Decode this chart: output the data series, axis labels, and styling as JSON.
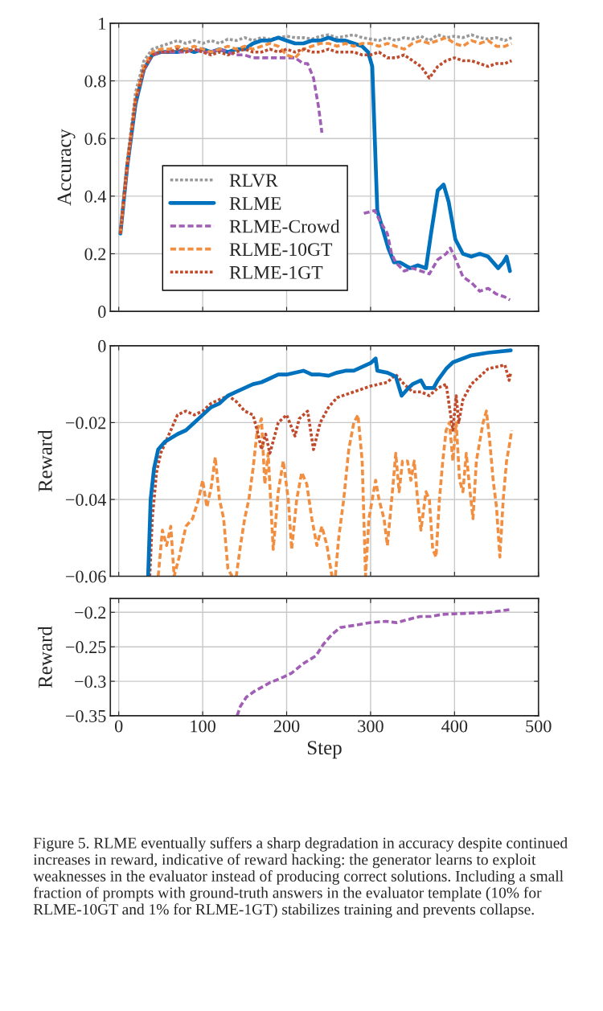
{
  "chart_data": [
    {
      "type": "line",
      "ylabel": "Accuracy",
      "xlim": [
        -10,
        500
      ],
      "xticks": [
        0,
        100,
        200,
        300,
        400,
        500
      ],
      "ylim": [
        0,
        1
      ],
      "yticks": [
        0,
        0.2,
        0.4,
        0.6,
        0.8,
        1
      ],
      "grid": true,
      "legend": "bottom left",
      "tick_labels": "y",
      "series": [
        {
          "name": "RLVR",
          "color": "#999999",
          "line_style": "dotted",
          "x": [
            2,
            10,
            20,
            30,
            40,
            50,
            60,
            70,
            80,
            90,
            100,
            110,
            120,
            130,
            140,
            150,
            160,
            170,
            180,
            190,
            200,
            210,
            220,
            230,
            240,
            250,
            260,
            270,
            280,
            290,
            300,
            310,
            320,
            330,
            340,
            350,
            360,
            370,
            380,
            390,
            400,
            410,
            420,
            430,
            440,
            450,
            460,
            468
          ],
          "values": [
            0.27,
            0.52,
            0.76,
            0.87,
            0.91,
            0.92,
            0.93,
            0.94,
            0.93,
            0.94,
            0.93,
            0.94,
            0.93,
            0.945,
            0.94,
            0.95,
            0.94,
            0.95,
            0.945,
            0.95,
            0.955,
            0.95,
            0.95,
            0.945,
            0.955,
            0.96,
            0.95,
            0.955,
            0.96,
            0.95,
            0.945,
            0.94,
            0.95,
            0.94,
            0.95,
            0.945,
            0.955,
            0.94,
            0.96,
            0.95,
            0.955,
            0.95,
            0.96,
            0.95,
            0.945,
            0.95,
            0.94,
            0.95
          ]
        },
        {
          "name": "RLME",
          "color": "#0072bd",
          "line_style": "solid",
          "x": [
            2,
            10,
            20,
            30,
            40,
            50,
            60,
            70,
            80,
            90,
            100,
            110,
            120,
            130,
            140,
            150,
            160,
            170,
            180,
            190,
            200,
            210,
            220,
            230,
            240,
            250,
            260,
            270,
            280,
            290,
            297,
            302,
            308,
            315,
            321,
            328,
            335,
            347,
            356,
            366,
            372,
            380,
            387,
            393,
            401,
            410,
            420,
            430,
            440,
            452,
            458,
            462,
            466
          ],
          "values": [
            0.27,
            0.5,
            0.72,
            0.84,
            0.89,
            0.9,
            0.9,
            0.9,
            0.91,
            0.9,
            0.91,
            0.9,
            0.91,
            0.9,
            0.91,
            0.91,
            0.93,
            0.94,
            0.94,
            0.95,
            0.94,
            0.93,
            0.93,
            0.94,
            0.94,
            0.95,
            0.94,
            0.94,
            0.93,
            0.92,
            0.9,
            0.85,
            0.35,
            0.28,
            0.22,
            0.17,
            0.17,
            0.15,
            0.16,
            0.15,
            0.27,
            0.42,
            0.44,
            0.38,
            0.25,
            0.2,
            0.19,
            0.2,
            0.19,
            0.15,
            0.17,
            0.19,
            0.14
          ]
        },
        {
          "name": "RLME-Crowd",
          "color": "#a05eb5",
          "line_style": "dashed",
          "x": [
            2,
            10,
            20,
            30,
            40,
            50,
            60,
            70,
            80,
            90,
            100,
            110,
            120,
            130,
            140,
            150,
            160,
            170,
            180,
            190,
            200,
            210,
            220,
            225,
            232,
            238,
            242,
            246,
            292,
            305,
            310,
            320,
            325,
            330,
            340,
            350,
            360,
            370,
            380,
            390,
            395,
            400,
            410,
            420,
            430,
            440,
            450,
            460,
            466
          ],
          "values": [
            0.27,
            0.5,
            0.73,
            0.84,
            0.89,
            0.9,
            0.9,
            0.9,
            0.9,
            0.91,
            0.9,
            0.9,
            0.91,
            0.9,
            0.89,
            0.89,
            0.88,
            0.88,
            0.88,
            0.88,
            0.88,
            0.88,
            0.86,
            0.86,
            0.81,
            0.71,
            0.62,
            null,
            0.34,
            0.35,
            0.32,
            0.27,
            0.2,
            0.17,
            0.14,
            0.15,
            0.14,
            0.13,
            0.18,
            0.2,
            0.22,
            0.19,
            0.12,
            0.1,
            0.07,
            0.08,
            0.06,
            0.05,
            0.04
          ]
        },
        {
          "name": "RLME-10GT",
          "color": "#f28e40",
          "line_style": "dashed",
          "x": [
            2,
            10,
            20,
            30,
            40,
            50,
            60,
            70,
            80,
            90,
            100,
            110,
            120,
            130,
            140,
            150,
            160,
            170,
            180,
            190,
            200,
            210,
            220,
            230,
            240,
            250,
            260,
            270,
            280,
            290,
            300,
            310,
            320,
            330,
            340,
            350,
            360,
            370,
            380,
            390,
            400,
            410,
            420,
            430,
            440,
            450,
            460,
            468
          ],
          "values": [
            0.27,
            0.51,
            0.74,
            0.85,
            0.9,
            0.91,
            0.91,
            0.92,
            0.91,
            0.92,
            0.91,
            0.9,
            0.91,
            0.92,
            0.91,
            0.92,
            0.91,
            0.92,
            0.93,
            0.92,
            0.89,
            0.88,
            0.91,
            0.92,
            0.93,
            0.93,
            0.92,
            0.93,
            0.92,
            0.93,
            0.93,
            0.92,
            0.93,
            0.92,
            0.91,
            0.93,
            0.94,
            0.93,
            0.94,
            0.95,
            0.93,
            0.92,
            0.94,
            0.93,
            0.94,
            0.92,
            0.92,
            0.93
          ]
        },
        {
          "name": "RLME-1GT",
          "color": "#bf4a2c",
          "line_style": "dotted",
          "x": [
            2,
            10,
            20,
            30,
            40,
            50,
            60,
            70,
            80,
            90,
            100,
            110,
            120,
            130,
            140,
            150,
            160,
            170,
            180,
            190,
            200,
            210,
            220,
            230,
            240,
            250,
            260,
            270,
            280,
            290,
            300,
            310,
            320,
            330,
            340,
            350,
            360,
            370,
            380,
            390,
            400,
            410,
            420,
            430,
            440,
            450,
            460,
            468
          ],
          "values": [
            0.27,
            0.5,
            0.73,
            0.84,
            0.89,
            0.9,
            0.9,
            0.91,
            0.9,
            0.91,
            0.9,
            0.89,
            0.9,
            0.89,
            0.9,
            0.91,
            0.9,
            0.9,
            0.91,
            0.9,
            0.91,
            0.9,
            0.91,
            0.9,
            0.9,
            0.91,
            0.9,
            0.9,
            0.9,
            0.89,
            0.89,
            0.9,
            0.88,
            0.88,
            0.89,
            0.87,
            0.85,
            0.81,
            0.85,
            0.87,
            0.88,
            0.87,
            0.87,
            0.86,
            0.85,
            0.86,
            0.86,
            0.87
          ]
        }
      ]
    },
    {
      "type": "line",
      "ylabel": "Reward",
      "xlim": [
        -10,
        500
      ],
      "xticks": [
        0,
        100,
        200,
        300,
        400,
        500
      ],
      "ylim": [
        -0.06,
        0
      ],
      "yticks": [
        {
          "value": -0.06,
          "label": "−0.06"
        },
        {
          "value": -0.04,
          "label": "−0.04"
        },
        {
          "value": -0.02,
          "label": "−0.02"
        },
        0
      ],
      "grid": true,
      "tick_labels": "y",
      "series": [
        {
          "color": "#f28e40",
          "line_style": "dashed",
          "x": [
            47,
            52,
            57,
            62,
            66,
            72,
            80,
            88,
            95,
            100,
            105,
            110,
            115,
            120,
            125,
            130,
            135,
            140,
            145,
            150,
            155,
            160,
            165,
            170,
            174,
            178,
            184,
            190,
            196,
            202,
            206,
            212,
            218,
            224,
            230,
            236,
            242,
            248,
            254,
            258,
            262,
            268,
            274,
            280,
            285,
            290,
            294,
            298,
            302,
            306,
            310,
            316,
            320,
            326,
            330,
            334,
            338,
            344,
            348,
            352,
            356,
            360,
            366,
            370,
            374,
            378,
            382,
            386,
            390,
            394,
            398,
            402,
            406,
            410,
            414,
            418,
            422,
            426,
            430,
            434,
            438,
            442,
            446,
            450,
            454,
            458,
            462,
            466,
            468
          ],
          "values": [
            -0.06,
            -0.048,
            -0.052,
            -0.047,
            -0.06,
            -0.055,
            -0.047,
            -0.045,
            -0.04,
            -0.035,
            -0.042,
            -0.037,
            -0.029,
            -0.04,
            -0.045,
            -0.058,
            -0.06,
            -0.06,
            -0.052,
            -0.045,
            -0.04,
            -0.032,
            -0.022,
            -0.019,
            -0.036,
            -0.028,
            -0.053,
            -0.038,
            -0.03,
            -0.04,
            -0.053,
            -0.04,
            -0.033,
            -0.036,
            -0.045,
            -0.052,
            -0.047,
            -0.052,
            -0.06,
            -0.06,
            -0.05,
            -0.04,
            -0.027,
            -0.02,
            -0.018,
            -0.03,
            -0.06,
            -0.045,
            -0.04,
            -0.035,
            -0.04,
            -0.045,
            -0.052,
            -0.038,
            -0.028,
            -0.038,
            -0.03,
            -0.03,
            -0.035,
            -0.03,
            -0.04,
            -0.048,
            -0.038,
            -0.04,
            -0.053,
            -0.055,
            -0.04,
            -0.03,
            -0.022,
            -0.02,
            -0.03,
            -0.02,
            -0.035,
            -0.038,
            -0.028,
            -0.037,
            -0.045,
            -0.03,
            -0.025,
            -0.02,
            -0.017,
            -0.025,
            -0.035,
            -0.042,
            -0.055,
            -0.04,
            -0.03,
            -0.025,
            -0.022
          ]
        },
        {
          "color": "#bf4a2c",
          "line_style": "dotted",
          "x": [
            37,
            40,
            45,
            50,
            60,
            70,
            80,
            90,
            100,
            110,
            120,
            130,
            140,
            150,
            160,
            166,
            170,
            175,
            180,
            190,
            200,
            210,
            215,
            225,
            232,
            240,
            250,
            260,
            280,
            300,
            320,
            330,
            340,
            350,
            360,
            370,
            380,
            390,
            398,
            402,
            405,
            410,
            420,
            440,
            460,
            465,
            467
          ],
          "values": [
            -0.06,
            -0.045,
            -0.033,
            -0.028,
            -0.023,
            -0.018,
            -0.017,
            -0.018,
            -0.017,
            -0.015,
            -0.014,
            -0.013,
            -0.0145,
            -0.017,
            -0.018,
            -0.023,
            -0.027,
            -0.023,
            -0.028,
            -0.02,
            -0.018,
            -0.0235,
            -0.019,
            -0.017,
            -0.027,
            -0.02,
            -0.016,
            -0.0135,
            -0.012,
            -0.0105,
            -0.0095,
            -0.0075,
            -0.01,
            -0.012,
            -0.012,
            -0.013,
            -0.011,
            -0.01,
            -0.022,
            -0.013,
            -0.02,
            -0.014,
            -0.01,
            -0.006,
            -0.005,
            -0.009,
            -0.007
          ]
        },
        {
          "color": "#0072bd",
          "line_style": "solid",
          "x": [
            35,
            38,
            42,
            47,
            55,
            70,
            80,
            90,
            100,
            110,
            120,
            130,
            140,
            150,
            160,
            170,
            180,
            190,
            200,
            220,
            230,
            240,
            250,
            260,
            270,
            280,
            290,
            300,
            306,
            308,
            320,
            330,
            337,
            345,
            350,
            360,
            365,
            375,
            380,
            390,
            398,
            420,
            440,
            467
          ],
          "values": [
            -0.06,
            -0.04,
            -0.032,
            -0.027,
            -0.025,
            -0.023,
            -0.022,
            -0.02,
            -0.018,
            -0.016,
            -0.015,
            -0.013,
            -0.012,
            -0.011,
            -0.01,
            -0.0095,
            -0.0085,
            -0.0075,
            -0.0075,
            -0.0065,
            -0.0075,
            -0.0075,
            -0.0078,
            -0.007,
            -0.0065,
            -0.0065,
            -0.0055,
            -0.0045,
            -0.0033,
            -0.0065,
            -0.007,
            -0.008,
            -0.013,
            -0.011,
            -0.01,
            -0.009,
            -0.011,
            -0.011,
            -0.009,
            -0.006,
            -0.0043,
            -0.0025,
            -0.0018,
            -0.0012
          ]
        }
      ]
    },
    {
      "type": "line",
      "ylabel": "Reward",
      "xlabel": "Step",
      "xlim": [
        -10,
        500
      ],
      "xticks": [
        0,
        100,
        200,
        300,
        400,
        500
      ],
      "ylim": [
        -0.35,
        -0.18
      ],
      "yticks": [
        {
          "value": -0.35,
          "label": "−0.35"
        },
        {
          "value": -0.3,
          "label": "−0.3"
        },
        {
          "value": -0.25,
          "label": "−0.25"
        },
        {
          "value": -0.2,
          "label": "−0.2"
        }
      ],
      "grid": true,
      "annotations": [
        "Figure 5. RLME eventually suffers a sharp degradation in accuracy despite continued increases in reward, indicative of reward hacking: the generator learns to exploit weaknesses in the evaluator instead of producing correct solutions. Including a small fraction of prompts with ground-truth answers in the evaluator template (10% for RLME-10GT and 1% for RLME-1GT) stabilizes training and prevents collapse."
      ],
      "series": [
        {
          "color": "#a05eb5",
          "line_style": "dashed",
          "x": [
            141,
            145,
            152,
            161,
            180,
            196,
            206,
            219,
            235,
            244,
            254,
            264,
            280,
            299,
            318,
            331,
            343,
            359,
            372,
            385,
            404,
            423,
            443,
            466
          ],
          "values": [
            -0.35,
            -0.336,
            -0.323,
            -0.315,
            -0.302,
            -0.294,
            -0.288,
            -0.275,
            -0.263,
            -0.246,
            -0.232,
            -0.222,
            -0.219,
            -0.215,
            -0.213,
            -0.215,
            -0.211,
            -0.206,
            -0.206,
            -0.203,
            -0.202,
            -0.201,
            -0.2,
            -0.196
          ]
        }
      ]
    }
  ]
}
